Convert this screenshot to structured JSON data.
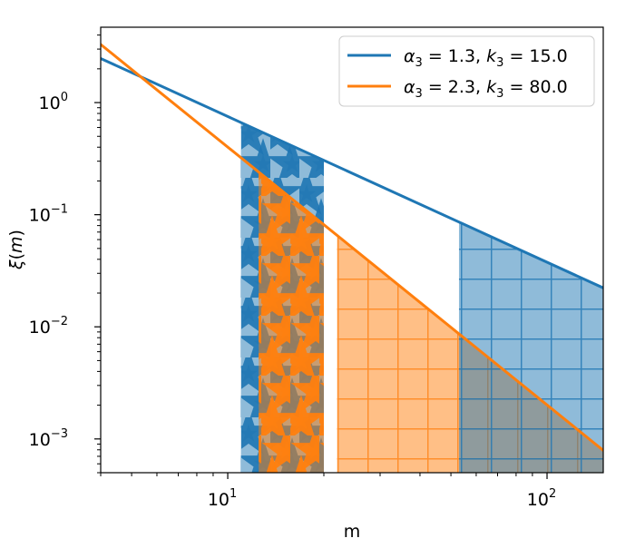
{
  "chart_data": {
    "type": "line",
    "xlabel": "m",
    "ylabel": "ξ(m)",
    "xscale": "log",
    "yscale": "log",
    "xlim": [
      4,
      150
    ],
    "ylim": [
      0.0005,
      4.7
    ],
    "x_ticks": [
      {
        "value": 10,
        "base": "10",
        "exp": "1"
      },
      {
        "value": 100,
        "base": "10",
        "exp": "2"
      }
    ],
    "y_ticks": [
      {
        "value": 1,
        "base": "10",
        "exp": "0"
      },
      {
        "value": 0.1,
        "base": "10",
        "exp": "−1"
      },
      {
        "value": 0.01,
        "base": "10",
        "exp": "−2"
      },
      {
        "value": 0.001,
        "base": "10",
        "exp": "−3"
      }
    ],
    "legend_position": "top-right",
    "grid": false,
    "series": [
      {
        "name": "α3 = 1.3, k3 = 15.0",
        "legend": {
          "greek": "α",
          "sub_a": "3",
          "mid": " = 1.3, ",
          "k": "k",
          "sub_k": "3",
          "tail": " = 15.0"
        },
        "color": "#1f77b4",
        "line": {
          "type": "power",
          "amplitude": 15.0,
          "exponent": -1.3
        },
        "x": [
          4,
          150
        ],
        "y": [
          2.48,
          0.0224
        ],
        "shaded_regions": [
          {
            "x": [
              11,
              20
            ],
            "pattern": "stars"
          },
          {
            "x": [
              53,
              150
            ],
            "pattern": "grid"
          }
        ]
      },
      {
        "name": "α3 = 2.3, k3 = 80.0",
        "legend": {
          "greek": "α",
          "sub_a": "3",
          "mid": " = 2.3, ",
          "k": "k",
          "sub_k": "3",
          "tail": " = 80.0"
        },
        "color": "#ff7f0e",
        "line": {
          "type": "power",
          "amplitude": 80.0,
          "exponent": -2.3
        },
        "x": [
          4,
          150
        ],
        "y": [
          3.3,
          0.0008
        ],
        "shaded_regions": [
          {
            "x": [
              12.5,
              20
            ],
            "pattern": "stars"
          },
          {
            "x": [
              22,
              150
            ],
            "pattern": "grid"
          }
        ]
      }
    ]
  }
}
